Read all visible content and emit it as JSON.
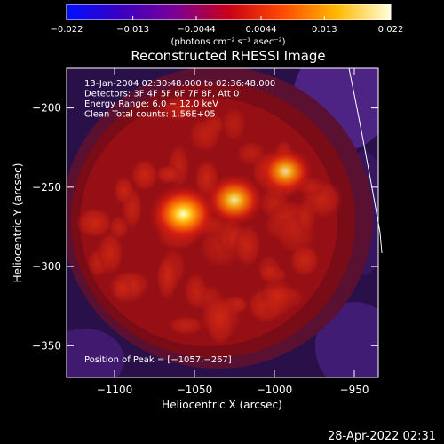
{
  "chart_data": {
    "type": "heatmap",
    "title": "Reconstructed RHESSI Image",
    "xlabel": "Heliocentric X (arcsec)",
    "ylabel": "Heliocentric Y (arcsec)",
    "xlim": [
      -1130,
      -935
    ],
    "ylim": [
      -370,
      -175
    ],
    "x_ticks": [
      -1100,
      -1050,
      -1000,
      -950
    ],
    "x_tick_labels": [
      "−1100",
      "−1050",
      "−1000",
      "−950"
    ],
    "y_ticks": [
      -200,
      -250,
      -300,
      -350
    ],
    "y_tick_labels": [
      "−200",
      "−250",
      "−300",
      "−350"
    ],
    "colorbar": {
      "range": [
        -0.022,
        0.022
      ],
      "ticks": [
        -0.022,
        -0.013,
        -0.0044,
        0.0044,
        0.013,
        0.022
      ],
      "tick_labels": [
        "−0.022",
        "−0.013",
        "−0.0044",
        "0.0044",
        "0.013",
        "0.022"
      ],
      "label": "(photons cm⁻² s⁻¹ asec⁻²)",
      "colors": [
        "#0010ff",
        "#3a00c0",
        "#7a0098",
        "#c80018",
        "#ff4a00",
        "#ffb800",
        "#ffffdc"
      ]
    },
    "annotations": [
      "13-Jan-2004 02:30:48.000 to 02:36:48.000",
      "Detectors: 3F 4F 5F 6F 7F 8F, Att 0",
      "Energy Range: 6.0 − 12.0 keV",
      "Clean    Total counts: 1.56E+05"
    ],
    "peak_label": "Position of Peak = [−1057,−267]",
    "peak": {
      "x": -1057,
      "y": -267
    },
    "sources": [
      {
        "x": -1057,
        "y": -267,
        "intensity": 1.0
      },
      {
        "x": -1025,
        "y": -258,
        "intensity": 0.8
      },
      {
        "x": -993,
        "y": -240,
        "intensity": 0.7
      }
    ]
  },
  "footer": {
    "timestamp": "28-Apr-2022 02:31"
  }
}
